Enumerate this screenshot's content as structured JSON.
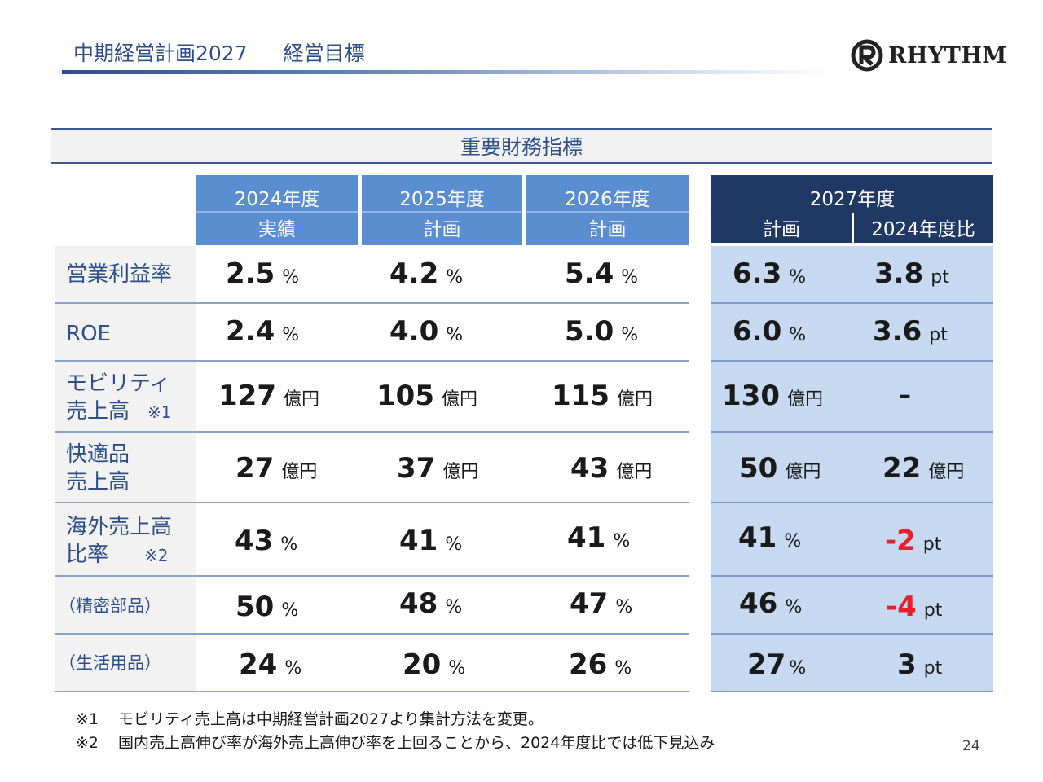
{
  "header": {
    "title": "中期経営計画2027",
    "subtitle": "経営目標",
    "logo_text": "RHYTHM"
  },
  "section_title": "重要財務指標",
  "columns": [
    {
      "year": "2024年度",
      "type": "実績"
    },
    {
      "year": "2025年度",
      "type": "計画"
    },
    {
      "year": "2026年度",
      "type": "計画"
    }
  ],
  "column_2027": {
    "year": "2027年度",
    "type": "計画",
    "compare": "2024年度比"
  },
  "rows": [
    {
      "label": "営業利益率",
      "note": "",
      "values": [
        {
          "num": "2.5",
          "unit": "%"
        },
        {
          "num": "4.2",
          "unit": "%"
        },
        {
          "num": "5.4",
          "unit": "%"
        },
        {
          "num": "6.3",
          "unit": "%"
        },
        {
          "num": "3.8",
          "unit": "pt"
        }
      ]
    },
    {
      "label": "ROE",
      "note": "",
      "values": [
        {
          "num": "2.4",
          "unit": "%"
        },
        {
          "num": "4.0",
          "unit": "%"
        },
        {
          "num": "5.0",
          "unit": "%"
        },
        {
          "num": "6.0",
          "unit": "%"
        },
        {
          "num": "3.6",
          "unit": "pt"
        }
      ]
    },
    {
      "label_line1": "モビリティ",
      "label_line2": "売上高",
      "note": "※1",
      "values": [
        {
          "num": "127",
          "unit": "億円"
        },
        {
          "num": "105",
          "unit": "億円"
        },
        {
          "num": "115",
          "unit": "億円"
        },
        {
          "num": "130",
          "unit": "億円"
        },
        {
          "num": "–",
          "unit": ""
        }
      ]
    },
    {
      "label_line1": "快適品",
      "label_line2": "売上高",
      "note": "",
      "values": [
        {
          "num": "27",
          "unit": "億円"
        },
        {
          "num": "37",
          "unit": "億円"
        },
        {
          "num": "43",
          "unit": "億円"
        },
        {
          "num": "50",
          "unit": "億円"
        },
        {
          "num": "22",
          "unit": "億円"
        }
      ]
    },
    {
      "label_line1": "海外売上高",
      "label_line2": "比率",
      "note": "※2",
      "values": [
        {
          "num": "43",
          "unit": "%"
        },
        {
          "num": "41",
          "unit": "%"
        },
        {
          "num": "41",
          "unit": "%"
        },
        {
          "num": "41",
          "unit": "%"
        },
        {
          "num": "-2",
          "unit": "pt"
        }
      ]
    },
    {
      "label": "（精密部品）",
      "note": "",
      "values": [
        {
          "num": "50",
          "unit": "%"
        },
        {
          "num": "48",
          "unit": "%"
        },
        {
          "num": "47",
          "unit": "%"
        },
        {
          "num": "46",
          "unit": "%"
        },
        {
          "num": "-4",
          "unit": "pt"
        }
      ]
    },
    {
      "label": "（生活用品）",
      "note": "",
      "values": [
        {
          "num": "24",
          "unit": "%"
        },
        {
          "num": "20",
          "unit": "%"
        },
        {
          "num": "26",
          "unit": "%"
        },
        {
          "num": "27",
          "unit": "%"
        },
        {
          "num": "3",
          "unit": "pt"
        }
      ]
    }
  ],
  "footnotes": [
    {
      "mark": "※1",
      "text": "モビリティ売上高は中期経営計画2027より集計方法を変更。"
    },
    {
      "mark": "※2",
      "text": "国内売上高伸び率が海外売上高伸び率を上回ることから、2024年度比では低下見込み"
    }
  ],
  "page_number": "24",
  "colors": {
    "header_blue": "#5b8ed0",
    "header_navy": "#1f3864",
    "highlight_bg": "#c6d9f0",
    "negative_red": "#e8202a",
    "title_blue": "#2d4f8a"
  }
}
